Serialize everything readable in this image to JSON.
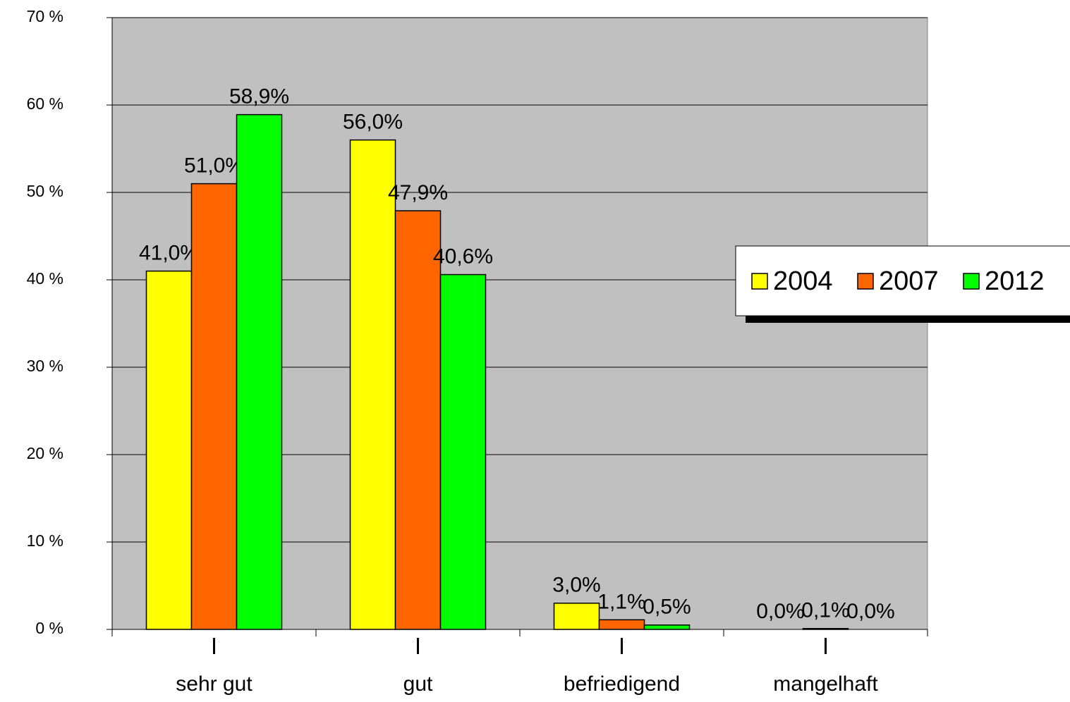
{
  "chart_data": {
    "type": "bar",
    "categories": [
      "sehr gut",
      "gut",
      "befriedigend",
      "mangelhaft"
    ],
    "series": [
      {
        "name": "2004",
        "color": "#ffff00",
        "values": [
          41.0,
          56.0,
          3.0,
          0.0
        ],
        "value_labels": [
          "41,0%",
          "56,0%",
          "3,0%",
          "0,0%"
        ]
      },
      {
        "name": "2007",
        "color": "#ff6600",
        "values": [
          51.0,
          47.9,
          1.1,
          0.1
        ],
        "value_labels": [
          "51,0%",
          "47,9%",
          "1,1%",
          "0,1%"
        ]
      },
      {
        "name": "2012",
        "color": "#00ff00",
        "values": [
          58.9,
          40.6,
          0.5,
          0.0
        ],
        "value_labels": [
          "58,9%",
          "40,6%",
          "0,5%",
          "0,0%"
        ]
      }
    ],
    "ylim": [
      0,
      70
    ],
    "yticks": [
      {
        "value": 0,
        "label": "0 %"
      },
      {
        "value": 10,
        "label": "10 %"
      },
      {
        "value": 20,
        "label": "20 %"
      },
      {
        "value": 30,
        "label": "30 %"
      },
      {
        "value": 40,
        "label": "40 %"
      },
      {
        "value": 50,
        "label": "50 %"
      },
      {
        "value": 60,
        "label": "60 %"
      },
      {
        "value": 70,
        "label": "70 %"
      }
    ],
    "grid": true,
    "legend": "right"
  }
}
